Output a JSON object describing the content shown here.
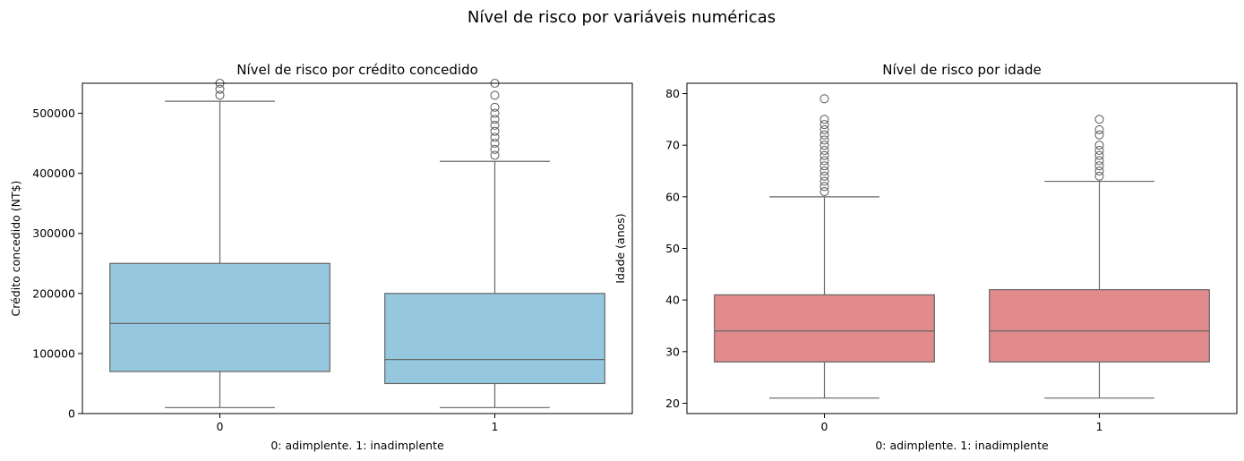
{
  "figure": {
    "suptitle": "Nível de risco por variáveis numéricas"
  },
  "chart_data": [
    {
      "type": "box",
      "title": "Nível de risco por crédito concedido",
      "xlabel": "0: adimplente.    1: inadimplente",
      "ylabel": "Crédito concedido (NT$)",
      "categories": [
        "0",
        "1"
      ],
      "ylim": [
        0,
        550000
      ],
      "yticks": [
        0,
        100000,
        200000,
        300000,
        400000,
        500000
      ],
      "ytick_labels": [
        "0",
        "100000",
        "200000",
        "300000",
        "400000",
        "500000"
      ],
      "color": "#95c8de",
      "boxes": [
        {
          "category": "0",
          "whisker_low": 10000,
          "q1": 70000,
          "median": 150000,
          "q3": 250000,
          "whisker_high": 520000,
          "outliers": [
            530000,
            540000,
            550000
          ]
        },
        {
          "category": "1",
          "whisker_low": 10000,
          "q1": 50000,
          "median": 90000,
          "q3": 200000,
          "whisker_high": 420000,
          "outliers": [
            430000,
            440000,
            450000,
            460000,
            470000,
            480000,
            490000,
            500000,
            510000,
            530000,
            550000
          ]
        }
      ]
    },
    {
      "type": "box",
      "title": "Nível de risco por idade",
      "xlabel": "0: adimplente.    1: inadimplente",
      "ylabel": "Idade (anos)",
      "categories": [
        "0",
        "1"
      ],
      "ylim": [
        18,
        82
      ],
      "yticks": [
        20,
        30,
        40,
        50,
        60,
        70,
        80
      ],
      "ytick_labels": [
        "20",
        "30",
        "40",
        "50",
        "60",
        "70",
        "80"
      ],
      "color": "#e18b8c",
      "boxes": [
        {
          "category": "0",
          "whisker_low": 21,
          "q1": 28,
          "median": 34,
          "q3": 41,
          "whisker_high": 60,
          "outliers": [
            61,
            62,
            63,
            64,
            65,
            66,
            67,
            68,
            69,
            70,
            71,
            72,
            73,
            74,
            75,
            79
          ]
        },
        {
          "category": "1",
          "whisker_low": 21,
          "q1": 28,
          "median": 34,
          "q3": 42,
          "whisker_high": 63,
          "outliers": [
            64,
            65,
            66,
            67,
            68,
            69,
            70,
            72,
            73,
            75
          ]
        }
      ]
    }
  ]
}
